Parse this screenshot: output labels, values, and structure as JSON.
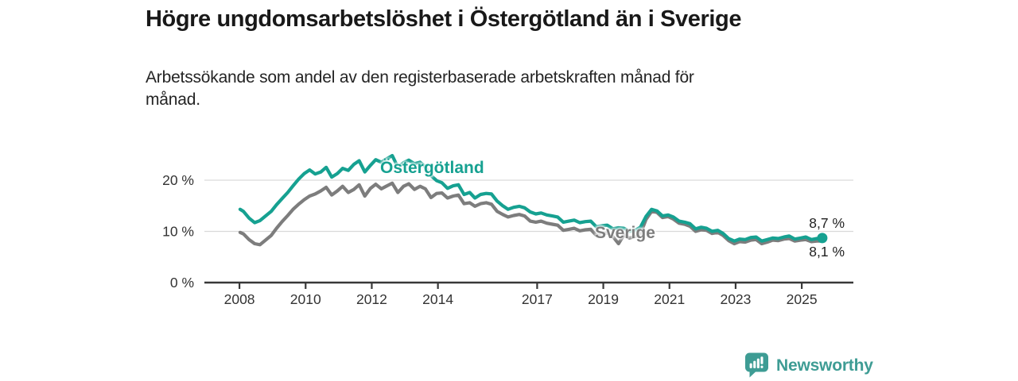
{
  "header": {
    "title": "Högre ungdomsarbetslöshet i Östergötland än i Sverige",
    "subtitle": "Arbetssökande som andel av den registerbaserade arbetskraften månad för\nmånad."
  },
  "footer": {
    "brand": "Newsworthy",
    "logo_icon": "bar-chart-speech-bubble-icon"
  },
  "colors": {
    "accent_teal": "#16a191",
    "series_gray": "#7d7d7d",
    "axis": "#383838",
    "tick_text": "#333333",
    "grid": "#d9d9d9",
    "logo_teal": "#3e9c94"
  },
  "chart_data": {
    "type": "line",
    "unit": "%",
    "xlim": [
      2006.94,
      2026.56
    ],
    "ylim": [
      0,
      27.9
    ],
    "grid": "horizontal-only",
    "legend_position": "inline-labels",
    "y_ticks": [
      {
        "value": 0,
        "label": "0 %"
      },
      {
        "value": 10,
        "label": "10 %"
      },
      {
        "value": 20,
        "label": "20 %"
      }
    ],
    "x_ticks": [
      2008,
      2010,
      2012,
      2014,
      2017,
      2019,
      2021,
      2023,
      2025
    ],
    "x": [
      2008.02,
      2008.12,
      2008.29,
      2008.46,
      2008.62,
      2008.79,
      2008.96,
      2009.12,
      2009.29,
      2009.46,
      2009.62,
      2009.79,
      2009.96,
      2010.12,
      2010.29,
      2010.46,
      2010.62,
      2010.79,
      2010.96,
      2011.12,
      2011.29,
      2011.46,
      2011.62,
      2011.79,
      2011.96,
      2012.12,
      2012.29,
      2012.46,
      2012.62,
      2012.79,
      2012.96,
      2013.12,
      2013.29,
      2013.46,
      2013.62,
      2013.79,
      2013.96,
      2014.12,
      2014.29,
      2014.46,
      2014.62,
      2014.79,
      2014.96,
      2015.12,
      2015.29,
      2015.46,
      2015.62,
      2015.79,
      2015.96,
      2016.12,
      2016.29,
      2016.46,
      2016.62,
      2016.79,
      2016.96,
      2017.12,
      2017.29,
      2017.46,
      2017.62,
      2017.79,
      2017.96,
      2018.12,
      2018.29,
      2018.46,
      2018.62,
      2018.79,
      2018.96,
      2019.12,
      2019.29,
      2019.46,
      2019.62,
      2019.79,
      2019.96,
      2020.12,
      2020.29,
      2020.46,
      2020.62,
      2020.79,
      2020.96,
      2021.12,
      2021.29,
      2021.46,
      2021.62,
      2021.79,
      2021.96,
      2022.12,
      2022.29,
      2022.46,
      2022.62,
      2022.79,
      2022.96,
      2023.12,
      2023.29,
      2023.46,
      2023.62,
      2023.79,
      2023.96,
      2024.12,
      2024.29,
      2024.46,
      2024.62,
      2024.79,
      2024.96,
      2025.12,
      2025.29,
      2025.46,
      2025.62
    ],
    "series": [
      {
        "name": "Östergötland",
        "color": "#16a191",
        "end_dot": true,
        "end_value_label": "8,7 %",
        "values": [
          14.3,
          13.9,
          12.6,
          11.7,
          12.1,
          13.0,
          13.9,
          15.2,
          16.4,
          17.6,
          18.9,
          20.2,
          21.3,
          22.0,
          21.2,
          21.6,
          22.5,
          20.6,
          21.3,
          22.3,
          21.9,
          23.1,
          23.8,
          21.6,
          22.9,
          24.0,
          23.5,
          24.2,
          24.8,
          22.5,
          23.4,
          23.9,
          23.2,
          23.5,
          22.6,
          20.9,
          19.9,
          19.5,
          18.4,
          18.9,
          19.1,
          17.2,
          17.6,
          16.5,
          17.2,
          17.4,
          17.3,
          15.9,
          15.0,
          14.3,
          14.7,
          14.9,
          14.6,
          13.8,
          13.4,
          13.6,
          13.2,
          13.0,
          12.8,
          11.8,
          12.0,
          12.2,
          11.7,
          11.9,
          12.0,
          10.9,
          11.1,
          11.2,
          10.5,
          10.7,
          10.6,
          10.0,
          10.2,
          10.8,
          12.9,
          14.3,
          14.0,
          13.0,
          13.2,
          12.8,
          12.0,
          11.8,
          11.5,
          10.5,
          10.8,
          10.6,
          10.0,
          10.2,
          9.6,
          8.6,
          8.1,
          8.5,
          8.4,
          8.8,
          8.9,
          8.1,
          8.4,
          8.7,
          8.6,
          8.9,
          9.1,
          8.5,
          8.7,
          8.9,
          8.4,
          8.6,
          8.7
        ]
      },
      {
        "name": "Sverige",
        "color": "#7d7d7d",
        "end_dot": false,
        "end_value_label": "8,1 %",
        "values": [
          9.8,
          9.5,
          8.4,
          7.6,
          7.4,
          8.3,
          9.2,
          10.6,
          11.9,
          13.1,
          14.3,
          15.3,
          16.2,
          16.9,
          17.3,
          17.9,
          18.6,
          17.1,
          17.9,
          18.8,
          17.6,
          18.2,
          19.1,
          16.9,
          18.4,
          19.2,
          18.3,
          18.9,
          19.4,
          17.6,
          18.8,
          19.3,
          18.2,
          18.8,
          18.3,
          16.6,
          17.4,
          17.5,
          16.5,
          16.9,
          17.1,
          15.4,
          15.6,
          14.9,
          15.4,
          15.6,
          15.3,
          13.9,
          13.3,
          12.8,
          13.1,
          13.3,
          13.0,
          12.0,
          11.8,
          12.0,
          11.6,
          11.4,
          11.2,
          10.2,
          10.4,
          10.6,
          10.1,
          10.3,
          10.4,
          9.2,
          9.5,
          9.7,
          9.0,
          7.6,
          9.3,
          8.7,
          9.0,
          9.5,
          12.3,
          13.9,
          13.7,
          12.7,
          12.9,
          12.4,
          11.6,
          11.4,
          11.0,
          10.0,
          10.3,
          10.2,
          9.6,
          9.8,
          9.2,
          8.2,
          7.6,
          8.0,
          7.9,
          8.3,
          8.4,
          7.6,
          7.9,
          8.3,
          8.2,
          8.5,
          8.6,
          8.1,
          8.3,
          8.4,
          8.0,
          8.1,
          8.1
        ]
      }
    ]
  }
}
